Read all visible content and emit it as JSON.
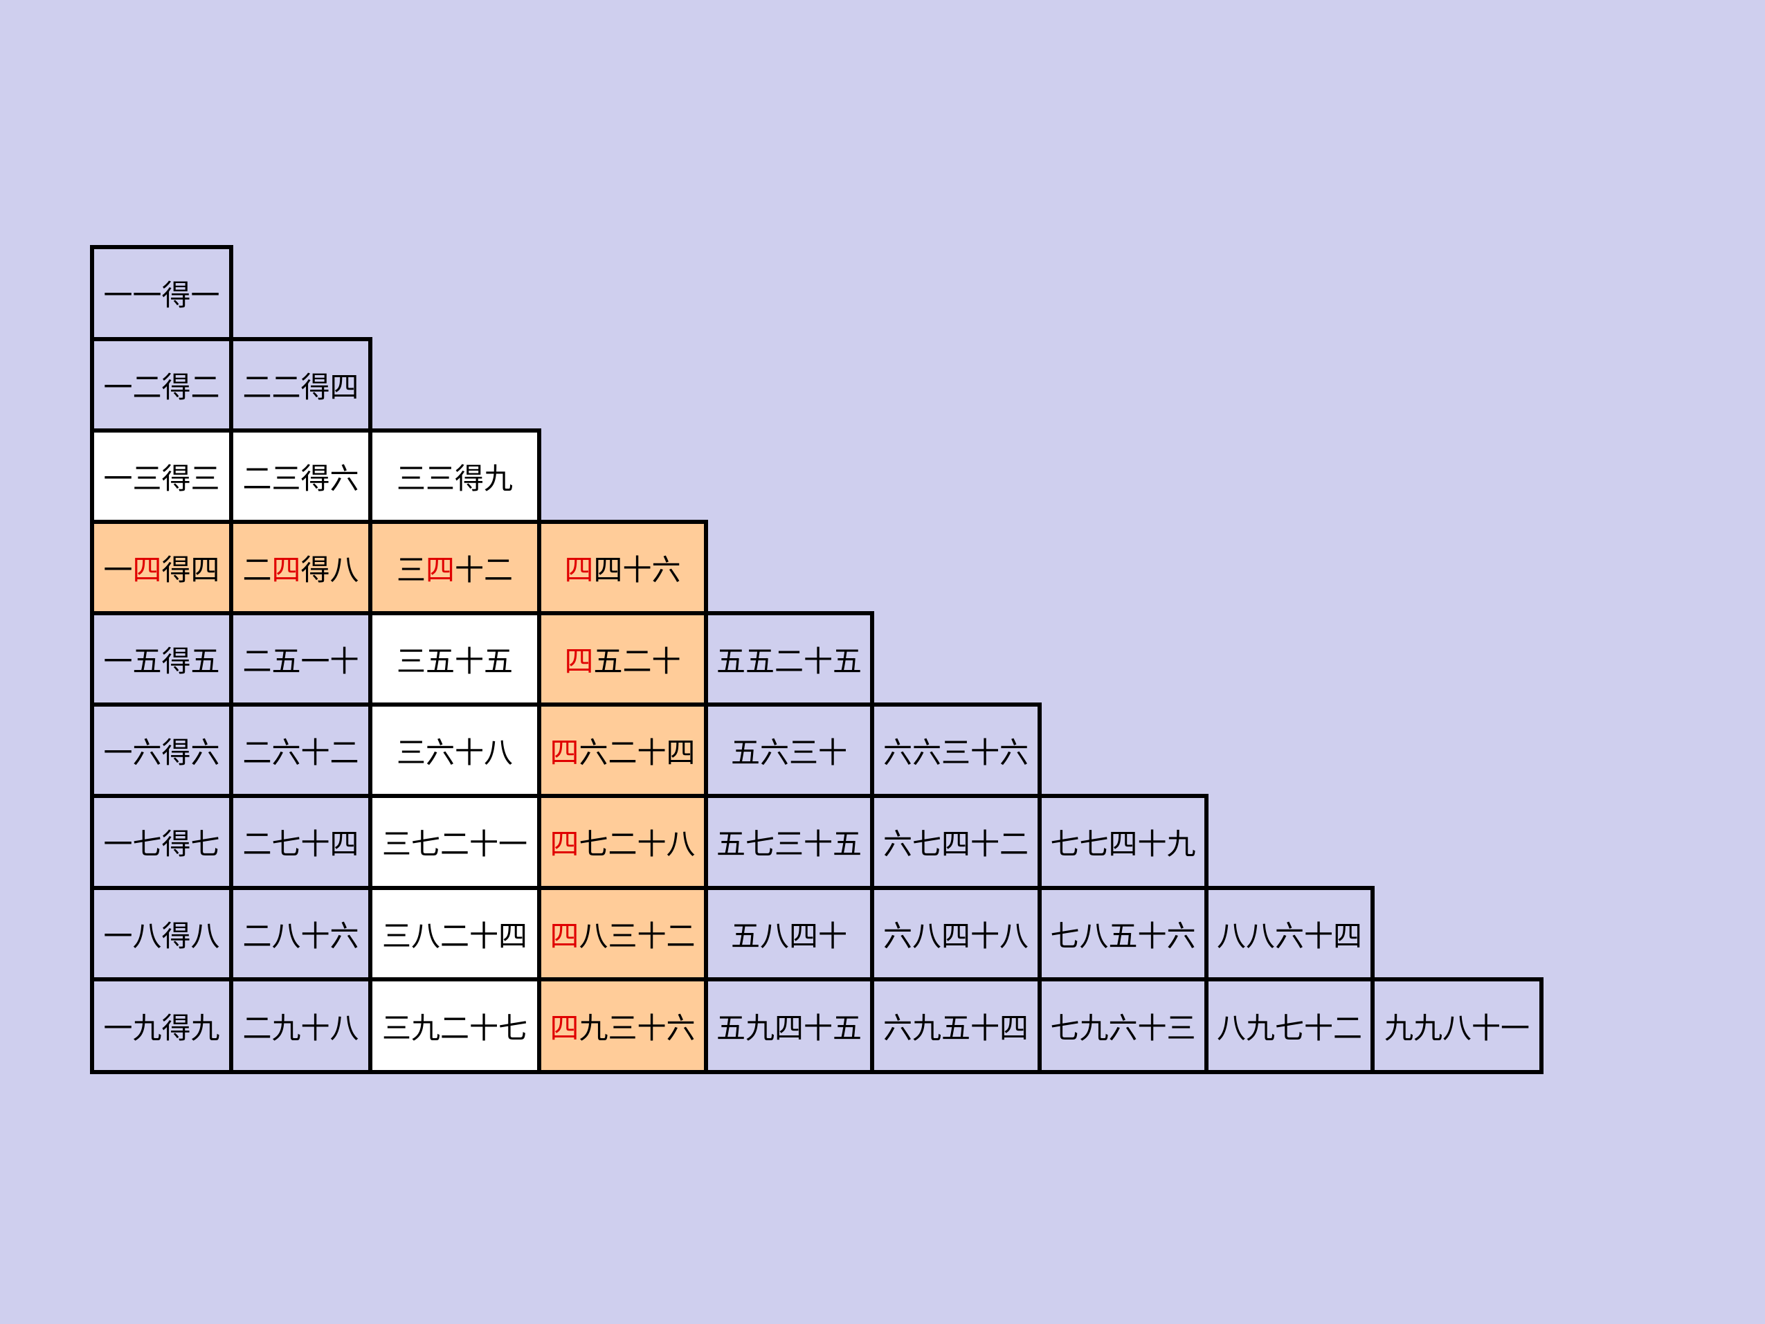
{
  "colors": {
    "background": "#cfcfee",
    "cell_default": "#cfcfee",
    "cell_white": "#ffffff",
    "cell_orange": "#ffcc99",
    "highlight_text": "#e00000",
    "border": "#000000"
  },
  "table": {
    "rows": [
      {
        "cells": [
          {
            "parts": [
              {
                "t": "一一得一",
                "hl": false
              }
            ],
            "bg": "default"
          }
        ]
      },
      {
        "cells": [
          {
            "parts": [
              {
                "t": "一二得二",
                "hl": false
              }
            ],
            "bg": "default"
          },
          {
            "parts": [
              {
                "t": "二二得四",
                "hl": false
              }
            ],
            "bg": "default"
          }
        ]
      },
      {
        "cells": [
          {
            "parts": [
              {
                "t": "一三得三",
                "hl": false
              }
            ],
            "bg": "white"
          },
          {
            "parts": [
              {
                "t": "二三得六",
                "hl": false
              }
            ],
            "bg": "white"
          },
          {
            "parts": [
              {
                "t": "三三得九",
                "hl": false
              }
            ],
            "bg": "white"
          }
        ]
      },
      {
        "cells": [
          {
            "parts": [
              {
                "t": "一",
                "hl": false
              },
              {
                "t": "四",
                "hl": true
              },
              {
                "t": "得四",
                "hl": false
              }
            ],
            "bg": "orange"
          },
          {
            "parts": [
              {
                "t": "二",
                "hl": false
              },
              {
                "t": "四",
                "hl": true
              },
              {
                "t": "得八",
                "hl": false
              }
            ],
            "bg": "orange"
          },
          {
            "parts": [
              {
                "t": "三",
                "hl": false
              },
              {
                "t": "四",
                "hl": true
              },
              {
                "t": "十二",
                "hl": false
              }
            ],
            "bg": "orange"
          },
          {
            "parts": [
              {
                "t": "四",
                "hl": true
              },
              {
                "t": "四十六",
                "hl": false
              }
            ],
            "bg": "orange"
          }
        ]
      },
      {
        "cells": [
          {
            "parts": [
              {
                "t": "一五得五",
                "hl": false
              }
            ],
            "bg": "default"
          },
          {
            "parts": [
              {
                "t": "二五一十",
                "hl": false
              }
            ],
            "bg": "default"
          },
          {
            "parts": [
              {
                "t": "三五十五",
                "hl": false
              }
            ],
            "bg": "white"
          },
          {
            "parts": [
              {
                "t": "四",
                "hl": true
              },
              {
                "t": "五二十",
                "hl": false
              }
            ],
            "bg": "orange"
          },
          {
            "parts": [
              {
                "t": "五五二十五",
                "hl": false
              }
            ],
            "bg": "default"
          }
        ]
      },
      {
        "cells": [
          {
            "parts": [
              {
                "t": "一六得六",
                "hl": false
              }
            ],
            "bg": "default"
          },
          {
            "parts": [
              {
                "t": "二六十二",
                "hl": false
              }
            ],
            "bg": "default"
          },
          {
            "parts": [
              {
                "t": "三六十八",
                "hl": false
              }
            ],
            "bg": "white"
          },
          {
            "parts": [
              {
                "t": "四",
                "hl": true
              },
              {
                "t": "六二十四",
                "hl": false
              }
            ],
            "bg": "orange"
          },
          {
            "parts": [
              {
                "t": "五六三十",
                "hl": false
              }
            ],
            "bg": "default"
          },
          {
            "parts": [
              {
                "t": "六六三十六",
                "hl": false
              }
            ],
            "bg": "default"
          }
        ]
      },
      {
        "cells": [
          {
            "parts": [
              {
                "t": "一七得七",
                "hl": false
              }
            ],
            "bg": "default"
          },
          {
            "parts": [
              {
                "t": "二七十四",
                "hl": false
              }
            ],
            "bg": "default"
          },
          {
            "parts": [
              {
                "t": "三七二十一",
                "hl": false
              }
            ],
            "bg": "white"
          },
          {
            "parts": [
              {
                "t": "四",
                "hl": true
              },
              {
                "t": "七二十八",
                "hl": false
              }
            ],
            "bg": "orange"
          },
          {
            "parts": [
              {
                "t": "五七三十五",
                "hl": false
              }
            ],
            "bg": "default"
          },
          {
            "parts": [
              {
                "t": "六七四十二",
                "hl": false
              }
            ],
            "bg": "default"
          },
          {
            "parts": [
              {
                "t": "七七四十九",
                "hl": false
              }
            ],
            "bg": "default"
          }
        ]
      },
      {
        "cells": [
          {
            "parts": [
              {
                "t": "一八得八",
                "hl": false
              }
            ],
            "bg": "default"
          },
          {
            "parts": [
              {
                "t": "二八十六",
                "hl": false
              }
            ],
            "bg": "default"
          },
          {
            "parts": [
              {
                "t": "三八二十四",
                "hl": false
              }
            ],
            "bg": "white"
          },
          {
            "parts": [
              {
                "t": "四",
                "hl": true
              },
              {
                "t": "八三十二",
                "hl": false
              }
            ],
            "bg": "orange"
          },
          {
            "parts": [
              {
                "t": "五八四十",
                "hl": false
              }
            ],
            "bg": "default"
          },
          {
            "parts": [
              {
                "t": "六八四十八",
                "hl": false
              }
            ],
            "bg": "default"
          },
          {
            "parts": [
              {
                "t": "七八五十六",
                "hl": false
              }
            ],
            "bg": "default"
          },
          {
            "parts": [
              {
                "t": "八八六十四",
                "hl": false
              }
            ],
            "bg": "default"
          }
        ]
      },
      {
        "cells": [
          {
            "parts": [
              {
                "t": "一九得九",
                "hl": false
              }
            ],
            "bg": "default"
          },
          {
            "parts": [
              {
                "t": "二九十八",
                "hl": false
              }
            ],
            "bg": "default"
          },
          {
            "parts": [
              {
                "t": "三九二十七",
                "hl": false
              }
            ],
            "bg": "white"
          },
          {
            "parts": [
              {
                "t": "四",
                "hl": true
              },
              {
                "t": "九三十六",
                "hl": false
              }
            ],
            "bg": "orange"
          },
          {
            "parts": [
              {
                "t": "五九四十五",
                "hl": false
              }
            ],
            "bg": "default"
          },
          {
            "parts": [
              {
                "t": "六九五十四",
                "hl": false
              }
            ],
            "bg": "default"
          },
          {
            "parts": [
              {
                "t": "七九六十三",
                "hl": false
              }
            ],
            "bg": "default"
          },
          {
            "parts": [
              {
                "t": "八九七十二",
                "hl": false
              }
            ],
            "bg": "default"
          },
          {
            "parts": [
              {
                "t": "九九八十一",
                "hl": false
              }
            ],
            "bg": "default"
          }
        ]
      }
    ]
  }
}
